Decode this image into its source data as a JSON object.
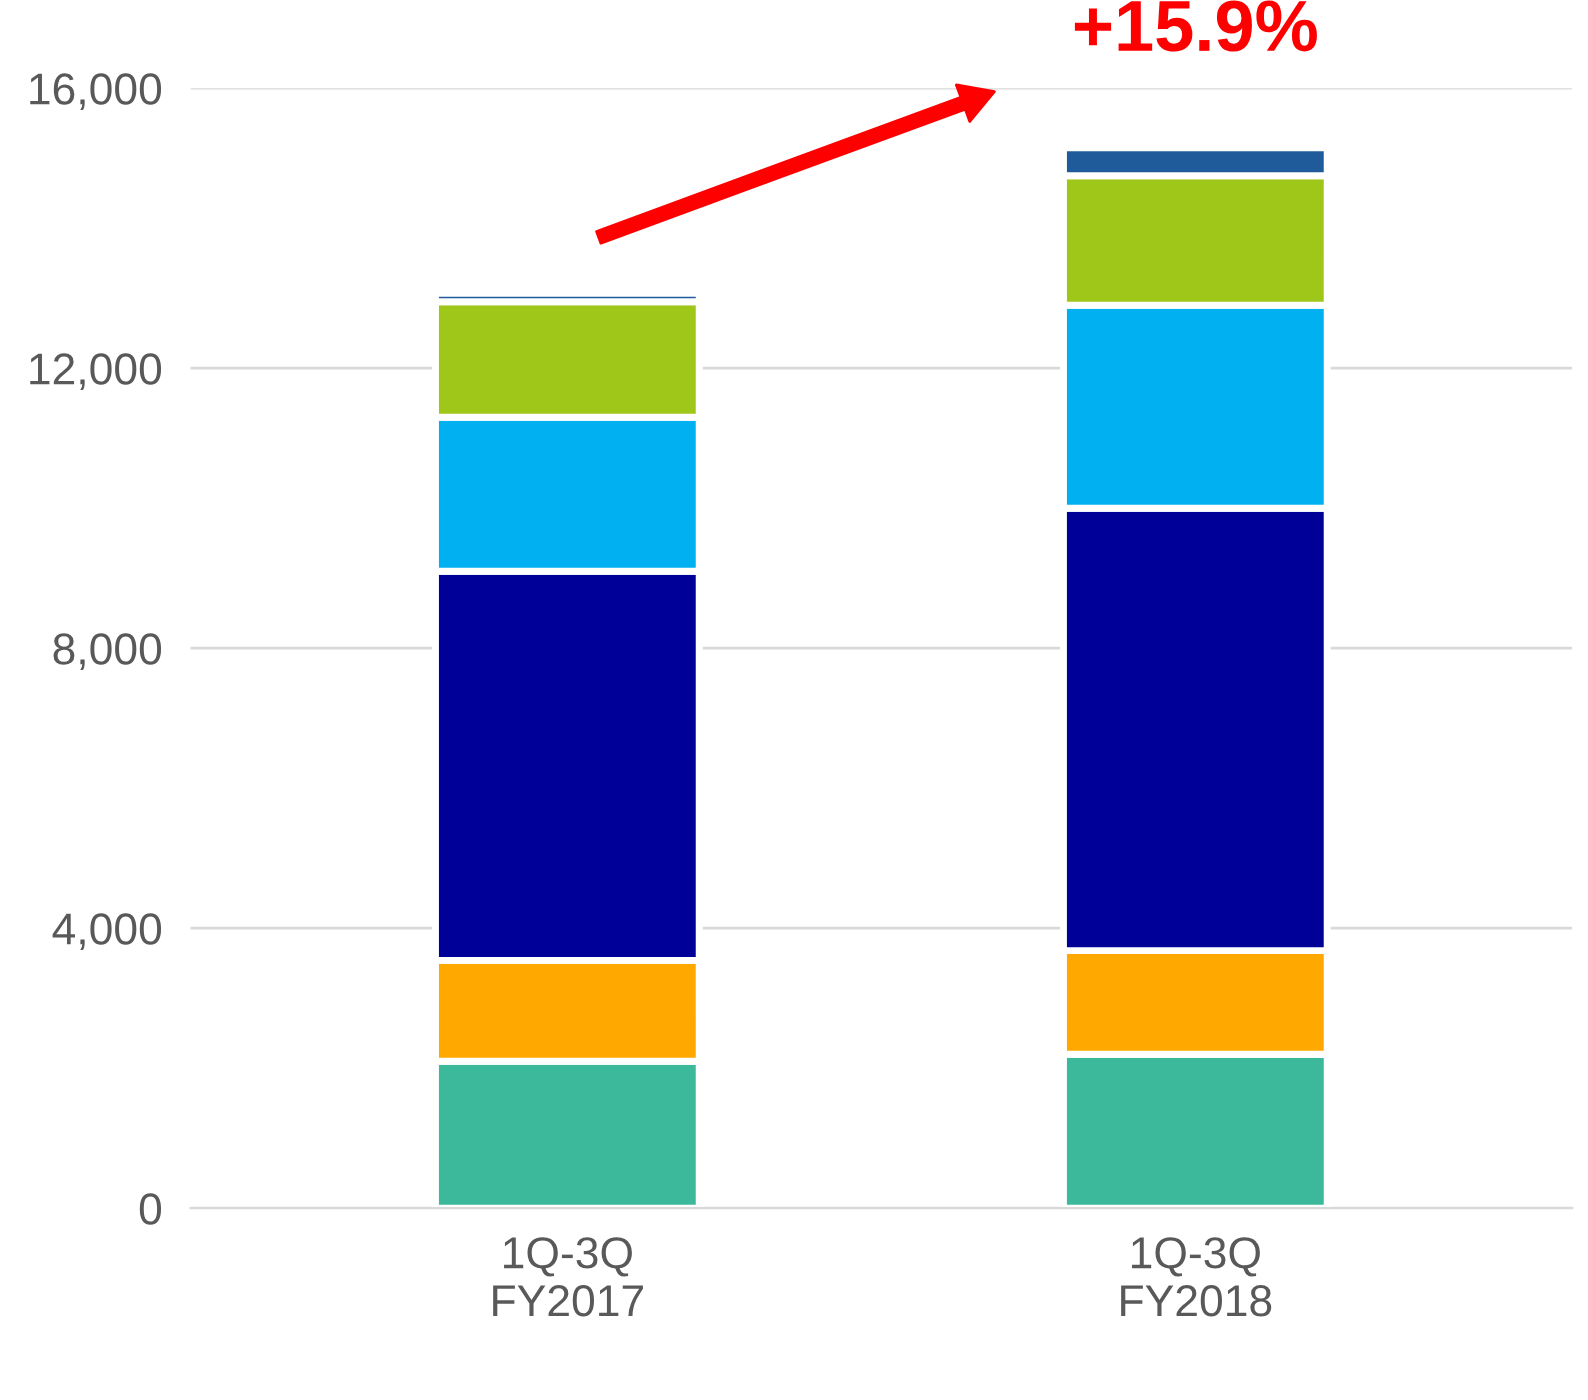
{
  "chart_data": {
    "type": "bar",
    "stacked": true,
    "categories": [
      "1Q-3Q\nFY2017",
      "1Q-3Q\nFY2018"
    ],
    "series": [
      {
        "color": "#3cb89a",
        "values": [
          2100,
          2200
        ]
      },
      {
        "color": "#ffa800",
        "values": [
          1440,
          1480
        ]
      },
      {
        "color": "#000099",
        "values": [
          5560,
          6320
        ]
      },
      {
        "color": "#00b0f0",
        "values": [
          2200,
          2900
        ]
      },
      {
        "color": "#9fc71a",
        "values": [
          1650,
          1850
        ]
      },
      {
        "color": "#1f5b9a",
        "values": [
          120,
          400
        ]
      }
    ],
    "ylim": [
      0,
      16000
    ],
    "yticks": [
      {
        "value": 0,
        "label": "0"
      },
      {
        "value": 4000,
        "label": "4,000"
      },
      {
        "value": 8000,
        "label": "8,000"
      },
      {
        "value": 12000,
        "label": "12,000"
      },
      {
        "value": 16000,
        "label": "16,000"
      }
    ],
    "grid": "y",
    "annotations": [
      "+15.9%"
    ]
  }
}
